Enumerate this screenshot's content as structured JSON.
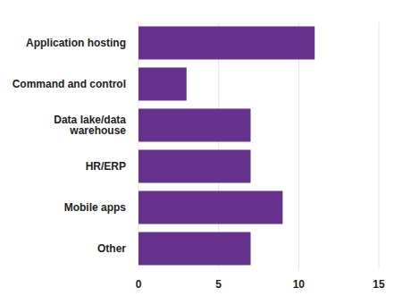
{
  "chart_data": {
    "type": "bar",
    "orientation": "horizontal",
    "categories": [
      "Application hosting",
      "Command and control",
      "Data lake/data warehouse",
      "HR/ERP",
      "Mobile apps",
      "Other"
    ],
    "values": [
      11,
      3,
      7,
      7,
      9,
      7
    ],
    "color": "#66318c",
    "xlim": [
      0,
      15
    ],
    "xticks": [
      0,
      5,
      10,
      15
    ],
    "grid": true
  }
}
